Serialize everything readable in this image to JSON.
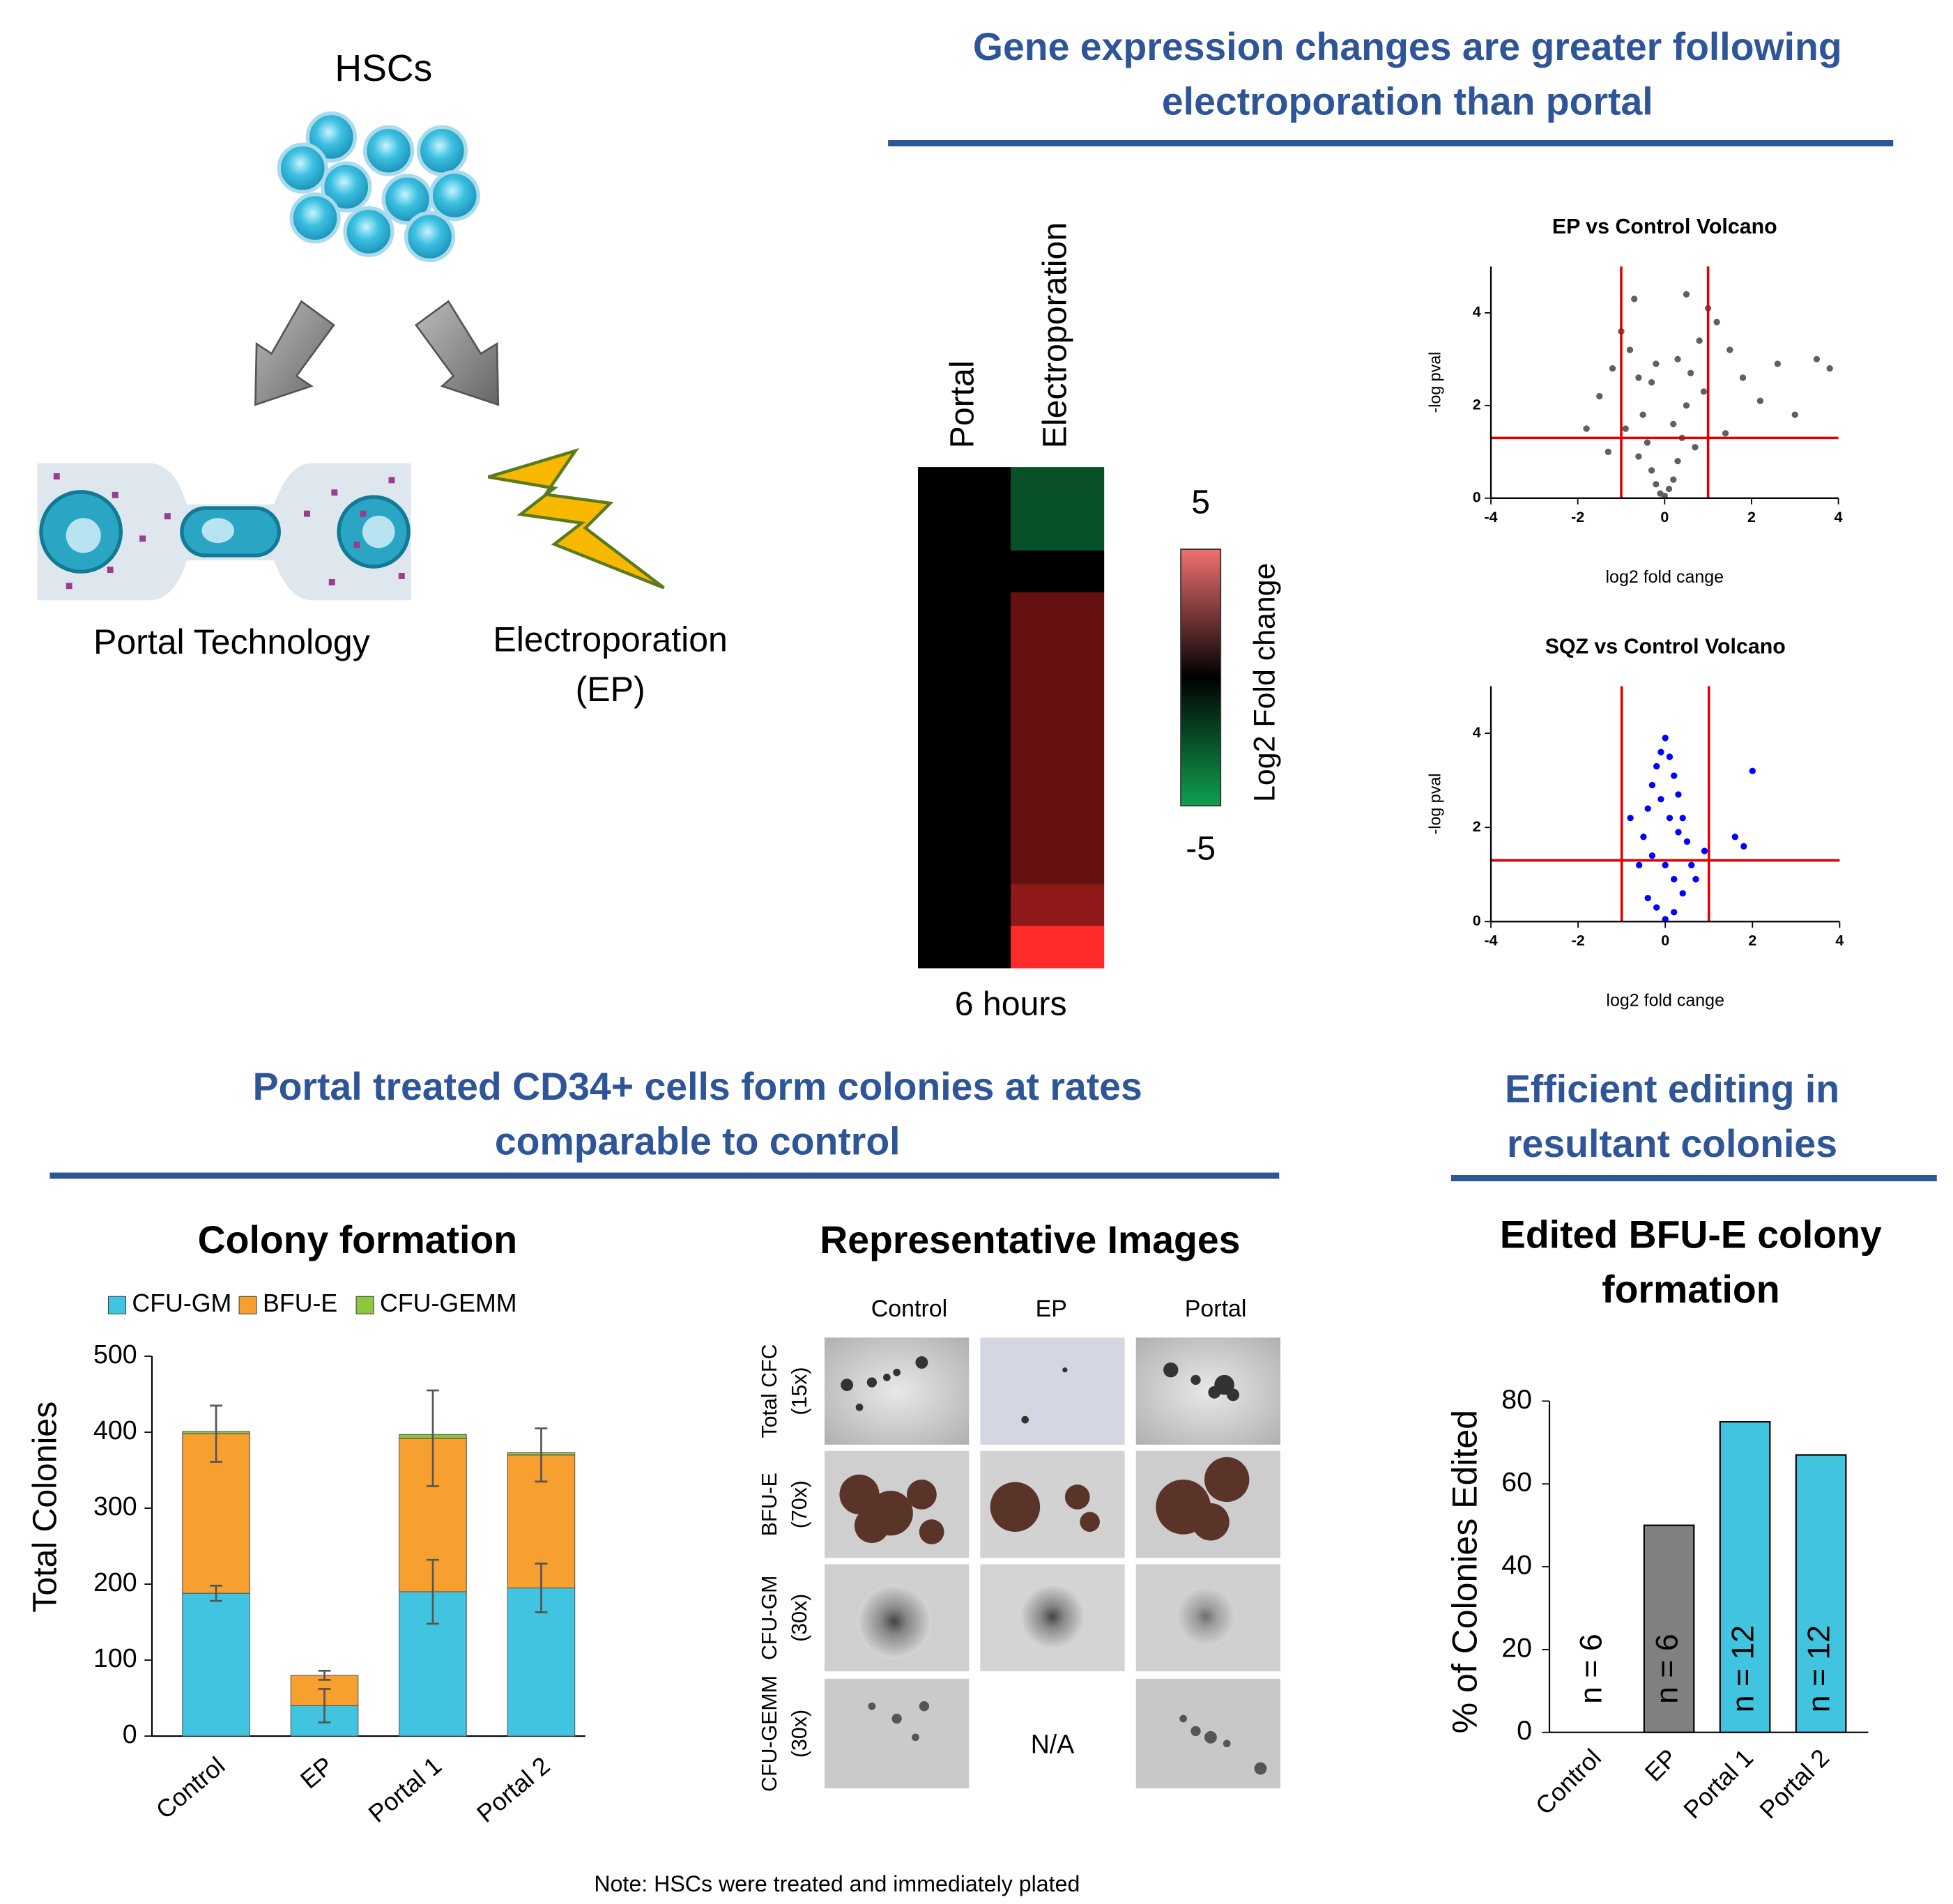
{
  "headings": [
    "Gene expression changes are greater following electroporation than portal",
    "Portal treated CD34+ cells form colonies at rates comparable to control",
    "Efficient editing in resultant colonies"
  ],
  "diagram": {
    "title": "HSCs",
    "portal_label": "Portal Technology",
    "ep_label": "Electroporation (EP)"
  },
  "images": {
    "title": "Representative Images",
    "columns": [
      "Control",
      "EP",
      "Portal"
    ],
    "rows": [
      [
        "Total CFC",
        "(15x)"
      ],
      [
        "BFU-E",
        "(70x)"
      ],
      [
        "CFU-GM",
        "(30x)"
      ],
      [
        "CFU-GEMM",
        "(30x)"
      ]
    ],
    "missing": "N/A"
  },
  "note": "Note: HSCs were treated and immediately plated",
  "chart_data": [
    {
      "type": "heatmap",
      "columns": [
        "Portal",
        "Electroporation"
      ],
      "values": [
        [
          0,
          0,
          0,
          0,
          0,
          0,
          0,
          0,
          0,
          0,
          0,
          0
        ],
        [
          -2.5,
          -2.5,
          0,
          2,
          2,
          2,
          2,
          2,
          2,
          2,
          2.8,
          5
        ]
      ],
      "colors": [
        "#10a050",
        "#000000",
        "#ff2a2a"
      ],
      "colorbar": {
        "title": "Log2 Fold change",
        "lim": [
          -5,
          5
        ],
        "ticks": [
          5,
          -5
        ]
      },
      "xlabel": "6 hours"
    },
    {
      "type": "scatter",
      "title": "EP vs Control Volcano",
      "xlabel": "log2 fold cange",
      "ylabel": "-log pval",
      "color": "#606060",
      "xlim": [
        -4,
        4
      ],
      "ylim": [
        0,
        5
      ],
      "xticks": [
        -4,
        -2,
        0,
        2,
        4
      ],
      "yticks": [
        0,
        2,
        4
      ],
      "vlines": [
        -1,
        1
      ],
      "hlines": [
        1.3
      ],
      "line_color": "#e00000",
      "x": [
        -1.8,
        -1.5,
        -1.2,
        -1,
        -0.8,
        -0.6,
        -0.5,
        -0.4,
        -0.3,
        -0.2,
        -0.1,
        0,
        0.1,
        0.2,
        0.3,
        0.4,
        0.5,
        0.6,
        0.8,
        1,
        1.2,
        1.5,
        1.8,
        2.2,
        2.6,
        3,
        3.5,
        3.8,
        -0.9,
        -0.6,
        0.7,
        0.9,
        -0.3,
        0.3,
        -1.3,
        1.4,
        0.5,
        -0.7,
        0.2,
        -0.2
      ],
      "y": [
        1.5,
        2.2,
        2.8,
        3.6,
        3.2,
        2.6,
        1.8,
        1.2,
        0.6,
        0.3,
        0.1,
        0.05,
        0.2,
        0.4,
        0.8,
        1.3,
        2,
        2.7,
        3.4,
        4.1,
        3.8,
        3.2,
        2.6,
        2.1,
        2.9,
        1.8,
        3,
        2.8,
        1.5,
        0.9,
        1.1,
        2.3,
        2.5,
        3,
        1,
        1.4,
        4.4,
        4.3,
        1.6,
        2.9
      ]
    },
    {
      "type": "scatter",
      "title": "SQZ vs Control Volcano",
      "xlabel": "log2 fold cange",
      "ylabel": "-log pval",
      "color": "#0000ff",
      "xlim": [
        -4,
        4
      ],
      "ylim": [
        0,
        5
      ],
      "xticks": [
        -4,
        -2,
        0,
        2,
        4
      ],
      "yticks": [
        0,
        2,
        4
      ],
      "vlines": [
        -1,
        1
      ],
      "hlines": [
        1.3
      ],
      "line_color": "#e00000",
      "x": [
        -0.6,
        -0.5,
        -0.4,
        -0.3,
        -0.2,
        -0.1,
        0,
        0.1,
        0.2,
        0.3,
        0.4,
        0.5,
        0.6,
        0.7,
        -0.4,
        -0.2,
        0,
        0.2,
        0.4,
        -0.3,
        0.1,
        0.3,
        -0.1,
        0,
        0.2,
        1.6,
        1.8,
        2,
        -0.8,
        0.9
      ],
      "y": [
        1.2,
        1.8,
        2.4,
        2.9,
        3.3,
        3.6,
        3.9,
        3.5,
        3.1,
        2.7,
        2.2,
        1.7,
        1.2,
        0.9,
        0.5,
        0.3,
        0.05,
        0.2,
        0.6,
        1.4,
        2.2,
        1.9,
        2.6,
        1.2,
        0.9,
        1.8,
        1.6,
        3.2,
        2.2,
        1.5
      ]
    },
    {
      "type": "stacked_bar",
      "title": "Colony formation",
      "ylabel": "Total Colonies",
      "categories": [
        "Control",
        "EP",
        "Portal 1",
        "Portal 2"
      ],
      "ylim": [
        0,
        500
      ],
      "yticks": [
        0,
        100,
        200,
        300,
        400,
        500
      ],
      "series": [
        {
          "name": "CFU-GM",
          "color": "#40c4df",
          "values": [
            188,
            40,
            190,
            195
          ],
          "errors": [
            10,
            22,
            42,
            32
          ]
        },
        {
          "name": "BFU-E",
          "color": "#f7a030",
          "values": [
            210,
            40,
            202,
            175
          ],
          "errors": [
            37,
            6,
            63,
            35
          ]
        },
        {
          "name": "CFU-GEMM",
          "color": "#8dc63f",
          "values": [
            3,
            0,
            5,
            3
          ]
        }
      ]
    },
    {
      "type": "bar",
      "title": "Edited BFU-E colony formation",
      "ylabel": "% of Colonies Edited",
      "categories": [
        "Control",
        "EP",
        "Portal 1",
        "Portal 2"
      ],
      "values": [
        0,
        50,
        75,
        67
      ],
      "colors": [
        "#ffffff",
        "#808080",
        "#40c4df",
        "#40c4df"
      ],
      "bar_labels": [
        "n = 6",
        "n = 6",
        "n = 12",
        "n = 12"
      ],
      "ylim": [
        0,
        80
      ],
      "yticks": [
        0,
        20,
        40,
        60,
        80
      ]
    }
  ]
}
